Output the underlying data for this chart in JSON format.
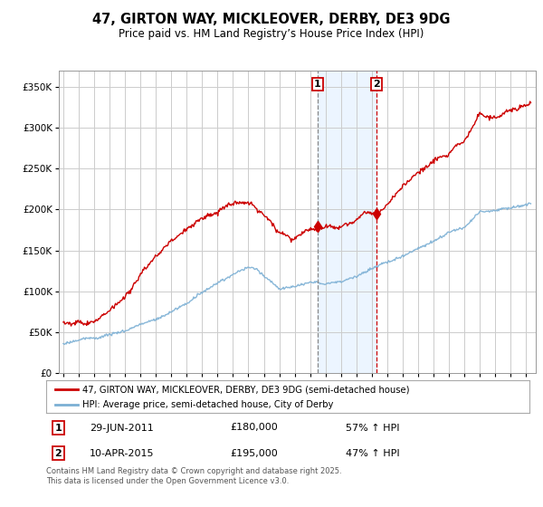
{
  "title": "47, GIRTON WAY, MICKLEOVER, DERBY, DE3 9DG",
  "subtitle": "Price paid vs. HM Land Registry’s House Price Index (HPI)",
  "ylim": [
    0,
    370000
  ],
  "xlim_start": 1994.7,
  "xlim_end": 2025.6,
  "sale1_date": 2011.49,
  "sale1_price": 180000,
  "sale2_date": 2015.28,
  "sale2_price": 195000,
  "sale1_label": "1",
  "sale2_label": "2",
  "legend_line1": "47, GIRTON WAY, MICKLEOVER, DERBY, DE3 9DG (semi-detached house)",
  "legend_line2": "HPI: Average price, semi-detached house, City of Derby",
  "footer": "Contains HM Land Registry data © Crown copyright and database right 2025.\nThis data is licensed under the Open Government Licence v3.0.",
  "red_color": "#cc0000",
  "blue_color": "#7bafd4",
  "background_color": "#ffffff",
  "grid_color": "#cccccc",
  "shade_color": "#ddeeff"
}
